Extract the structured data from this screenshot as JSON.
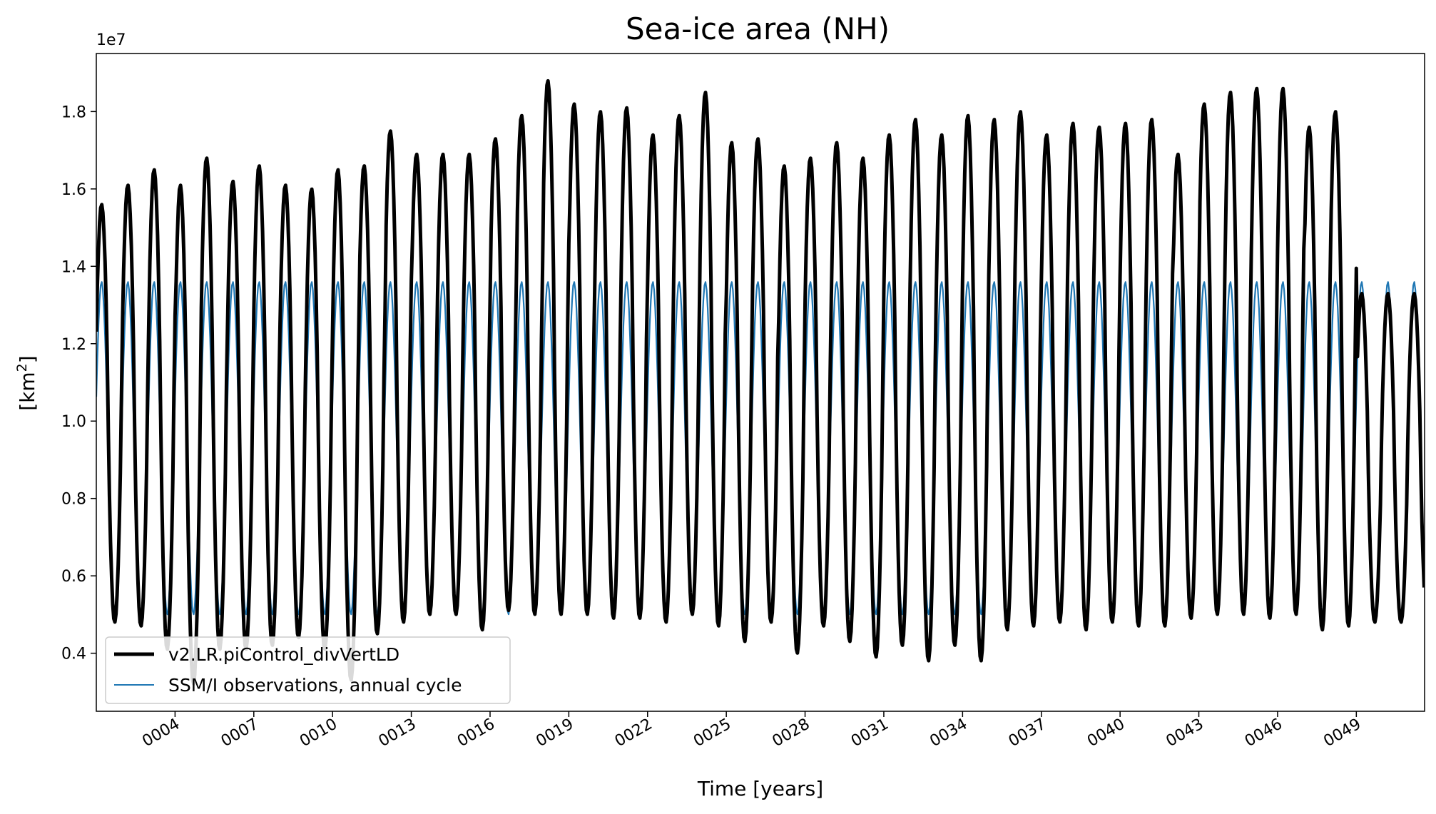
{
  "chart_data": {
    "type": "line",
    "title": "Sea-ice area (NH)",
    "xlabel": "Time [years]",
    "ylabel": "[km²]",
    "ylabel_base": "[km",
    "ylabel_sup": "2",
    "ylabel_end": "]",
    "y_offset_label": "1e7",
    "xlim": [
      1,
      51.6
    ],
    "ylim": [
      0.25,
      1.95
    ],
    "y_ticks": [
      0.4,
      0.6,
      0.8,
      1.0,
      1.2,
      1.4,
      1.6,
      1.8
    ],
    "y_tick_labels": [
      "0.4",
      "0.6",
      "0.8",
      "1.0",
      "1.2",
      "1.4",
      "1.6",
      "1.8"
    ],
    "x_ticks": [
      4,
      7,
      10,
      13,
      16,
      19,
      22,
      25,
      28,
      31,
      34,
      37,
      40,
      43,
      46,
      49
    ],
    "x_tick_labels": [
      "0004",
      "0007",
      "0010",
      "0013",
      "0016",
      "0019",
      "0022",
      "0025",
      "0028",
      "0031",
      "0034",
      "0037",
      "0040",
      "0043",
      "0046",
      "0049"
    ],
    "grid": false,
    "legend_placement": "lower-left",
    "series": [
      {
        "name": "v2.LR.piControl_divVertLD",
        "color": "#000000",
        "line_width": "thick",
        "yearly_max": [
          1.56,
          1.61,
          1.65,
          1.61,
          1.68,
          1.62,
          1.66,
          1.61,
          1.6,
          1.65,
          1.66,
          1.75,
          1.69,
          1.69,
          1.69,
          1.73,
          1.79,
          1.88,
          1.82,
          1.8,
          1.81,
          1.74,
          1.79,
          1.85,
          1.72,
          1.73,
          1.66,
          1.68,
          1.72,
          1.68,
          1.74,
          1.78,
          1.74,
          1.79,
          1.78,
          1.8,
          1.74,
          1.77,
          1.76,
          1.77,
          1.78,
          1.69,
          1.82,
          1.85,
          1.86,
          1.86,
          1.76,
          1.8,
          1.33
        ],
        "yearly_min": [
          0.48,
          0.47,
          0.41,
          0.32,
          0.41,
          0.41,
          0.42,
          0.44,
          0.41,
          0.33,
          0.45,
          0.48,
          0.5,
          0.5,
          0.46,
          0.51,
          0.5,
          0.5,
          0.5,
          0.49,
          0.49,
          0.48,
          0.5,
          0.47,
          0.43,
          0.48,
          0.4,
          0.47,
          0.43,
          0.39,
          0.42,
          0.38,
          0.42,
          0.38,
          0.46,
          0.47,
          0.48,
          0.46,
          0.48,
          0.47,
          0.47,
          0.49,
          0.5,
          0.5,
          0.49,
          0.5,
          0.46,
          0.47,
          0.48
        ]
      },
      {
        "name": "SSM/I observations, annual cycle",
        "color": "#1f77b4",
        "line_width": "thin",
        "annual_max": 1.36,
        "annual_min": 0.5
      }
    ]
  }
}
